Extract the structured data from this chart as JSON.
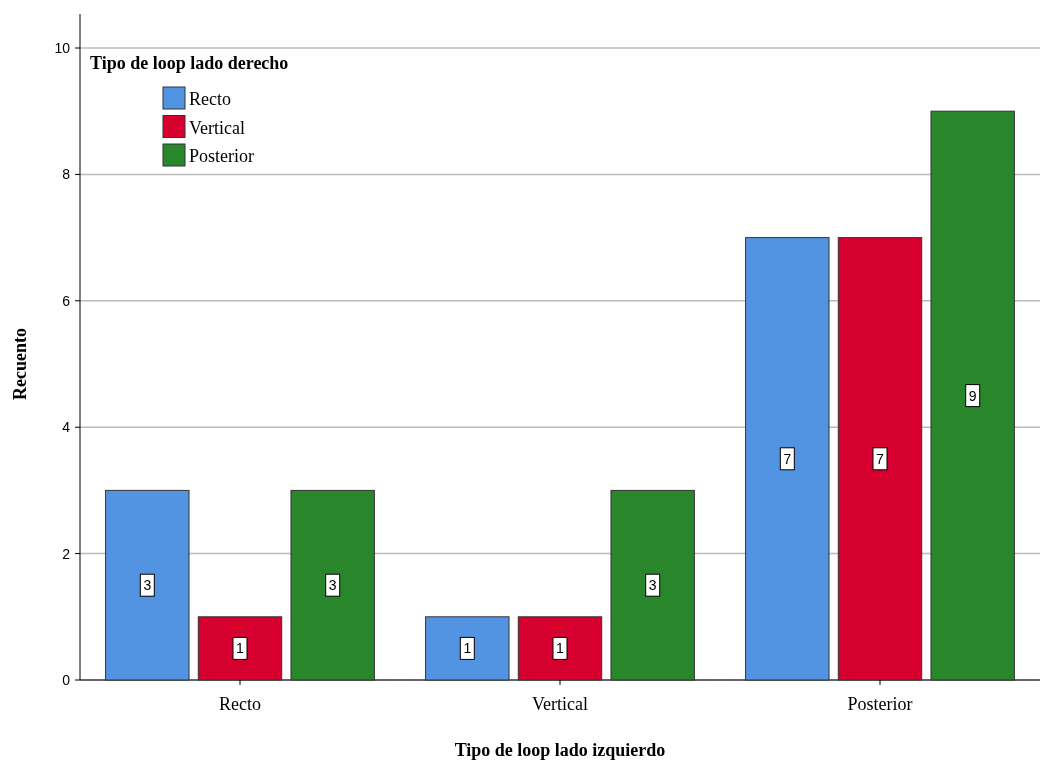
{
  "chart_data": {
    "type": "bar",
    "xlabel": "Tipo de loop lado izquierdo",
    "ylabel": "Recuento",
    "legend_title": "Tipo de loop lado derecho",
    "categories": [
      "Recto",
      "Vertical",
      "Posterior"
    ],
    "series": [
      {
        "name": "Recto",
        "color": "#5294e2",
        "values": [
          3,
          1,
          7
        ]
      },
      {
        "name": "Vertical",
        "color": "#d5002e",
        "values": [
          1,
          1,
          7
        ]
      },
      {
        "name": "Posterior",
        "color": "#2a862a",
        "values": [
          3,
          3,
          9
        ]
      }
    ],
    "ylim": [
      0,
      10
    ],
    "yticks": [
      0,
      2,
      4,
      6,
      8,
      10
    ],
    "grid": "y",
    "legend": "top left",
    "data_labels": true
  }
}
